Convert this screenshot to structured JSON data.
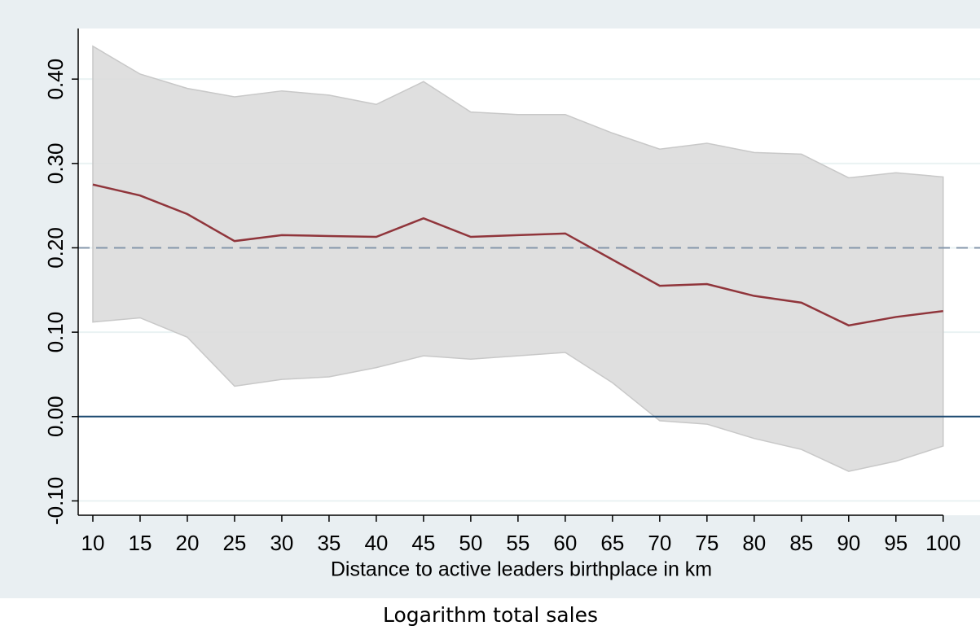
{
  "chart_data": {
    "type": "line-band",
    "x_label": "Distance to active leaders birthplace in km",
    "caption": "Logarithm total sales",
    "x": [
      10,
      15,
      20,
      25,
      30,
      35,
      40,
      45,
      50,
      55,
      60,
      65,
      70,
      75,
      80,
      85,
      90,
      95,
      100
    ],
    "estimate": {
      "color": "#90353b",
      "values": [
        0.275,
        0.262,
        0.24,
        0.208,
        0.215,
        0.214,
        0.213,
        0.235,
        0.213,
        0.215,
        0.217,
        0.186,
        0.155,
        0.157,
        0.143,
        0.135,
        0.108,
        0.118,
        0.125
      ]
    },
    "ci": {
      "color": "#dcdcdc",
      "upper": [
        0.439,
        0.406,
        0.389,
        0.379,
        0.386,
        0.381,
        0.37,
        0.397,
        0.361,
        0.358,
        0.358,
        0.336,
        0.317,
        0.324,
        0.313,
        0.311,
        0.283,
        0.289,
        0.284
      ],
      "lower": [
        0.112,
        0.117,
        0.094,
        0.036,
        0.044,
        0.047,
        0.058,
        0.072,
        0.068,
        0.072,
        0.076,
        0.04,
        -0.005,
        -0.009,
        -0.026,
        -0.039,
        -0.065,
        -0.053,
        -0.035
      ]
    },
    "reference_lines": [
      {
        "value": 0.2,
        "style": "dashed",
        "color": "#8497ab"
      },
      {
        "value": 0,
        "style": "solid",
        "color": "#1a476f"
      }
    ],
    "xlim": [
      8.45,
      103.9
    ],
    "ylim": [
      -0.117,
      0.46
    ],
    "xticks": [
      10,
      15,
      20,
      25,
      30,
      35,
      40,
      45,
      50,
      55,
      60,
      65,
      70,
      75,
      80,
      85,
      90,
      95,
      100
    ],
    "yticks": [
      {
        "value": -0.1,
        "label": "-0.10"
      },
      {
        "value": 0,
        "label": "0.00"
      },
      {
        "value": 0.1,
        "label": "0.10"
      },
      {
        "value": 0.2,
        "label": "0.20"
      },
      {
        "value": 0.3,
        "label": "0.30"
      },
      {
        "value": 0.4,
        "label": "0.40"
      }
    ],
    "grid": true
  }
}
